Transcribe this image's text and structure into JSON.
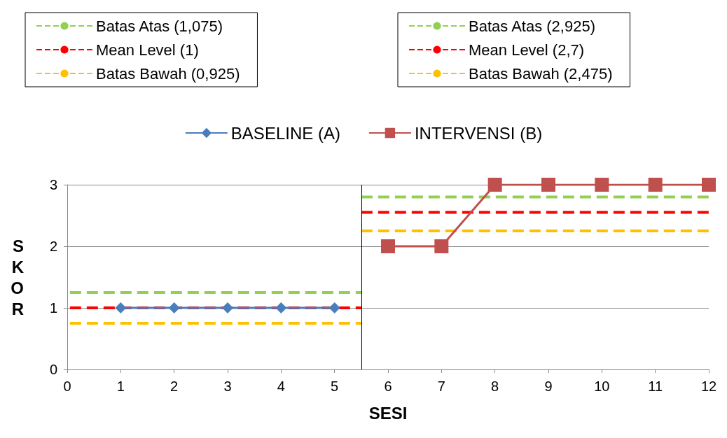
{
  "chart_data": {
    "type": "line",
    "xlabel": "SESI",
    "ylabel": "SKOR",
    "xlim": [
      0,
      12
    ],
    "xticks": [
      0,
      1,
      2,
      3,
      4,
      5,
      6,
      7,
      8,
      9,
      10,
      11,
      12
    ],
    "ylim": [
      0,
      3
    ],
    "yticks": [
      0,
      1,
      2,
      3
    ],
    "grid": "y",
    "legend": "top",
    "series": [
      {
        "name": "BASELINE (A)",
        "color": "#4a7ebb",
        "marker": "diamond",
        "line_style": "solid",
        "x": [
          1,
          2,
          3,
          4,
          5
        ],
        "values": [
          1,
          1,
          1,
          1,
          1
        ]
      },
      {
        "name": "INTERVENSI (B)",
        "color": "#c0504d",
        "marker": "square",
        "line_style": "solid",
        "x": [
          6,
          7,
          8,
          9,
          10,
          11,
          12
        ],
        "values": [
          2,
          2,
          3,
          3,
          3,
          3,
          3
        ]
      },
      {
        "name": "Batas Atas (1,075)",
        "color": "#92d050",
        "marker": "none",
        "line_style": "dashed",
        "x": [
          0.05,
          5.5
        ],
        "values": [
          1.25,
          1.25
        ]
      },
      {
        "name": "Mean Level (1)",
        "color": "#ff0000",
        "marker": "none",
        "line_style": "dashed",
        "x": [
          0.05,
          5.5
        ],
        "values": [
          1,
          1
        ]
      },
      {
        "name": "Batas Bawah (0,925)",
        "color": "#ffc000",
        "marker": "none",
        "line_style": "dashed",
        "x": [
          0.05,
          5.5
        ],
        "values": [
          0.75,
          0.75
        ]
      },
      {
        "name": "Batas Atas (2,925)",
        "color": "#92d050",
        "marker": "none",
        "line_style": "dashed",
        "x": [
          5.5,
          12
        ],
        "values": [
          2.8,
          2.8
        ]
      },
      {
        "name": "Mean Level (2,7)",
        "color": "#ff0000",
        "marker": "none",
        "line_style": "dashed",
        "x": [
          5.5,
          12
        ],
        "values": [
          2.55,
          2.55
        ]
      },
      {
        "name": "Batas Bawah (2,475)",
        "color": "#ffc000",
        "marker": "none",
        "line_style": "dashed",
        "x": [
          5.5,
          12
        ],
        "values": [
          2.25,
          2.25
        ]
      }
    ],
    "ref_lines": [
      {
        "axis": "x",
        "value": 5.5,
        "color": "#000000"
      }
    ]
  }
}
